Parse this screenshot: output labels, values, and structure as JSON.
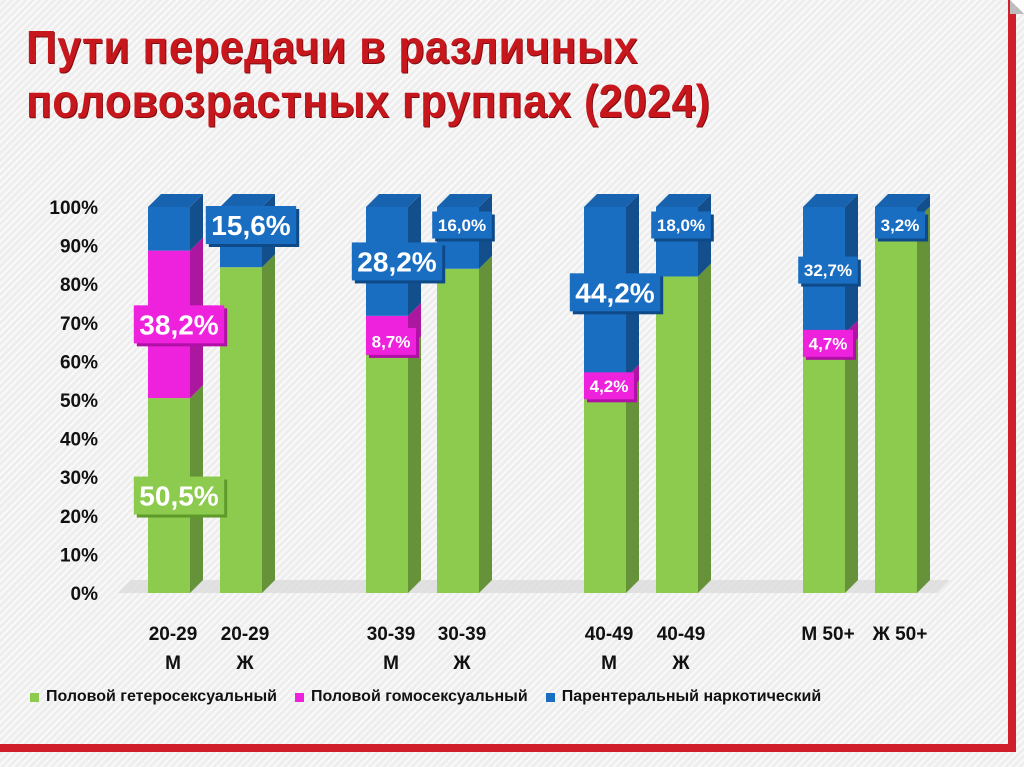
{
  "title": "Пути передачи в различных\nполовозрастных группах (2024)",
  "colors": {
    "green": "#8dcb4f",
    "magenta": "#ee22dd",
    "blue": "#1a6ec2",
    "frame": "#d01f2b"
  },
  "chart_data": {
    "type": "bar",
    "stacked": true,
    "title": "Пути передачи в различных половозрастных группах (2024)",
    "ylim": [
      0,
      100
    ],
    "yticks": [
      "0%",
      "10%",
      "20%",
      "30%",
      "40%",
      "50%",
      "60%",
      "70%",
      "80%",
      "90%",
      "100%"
    ],
    "categories": [
      {
        "line1": "20-29",
        "line2": "М"
      },
      {
        "line1": "20-29",
        "line2": "Ж"
      },
      {
        "line1": "30-39",
        "line2": "М"
      },
      {
        "line1": "30-39",
        "line2": "Ж"
      },
      {
        "line1": "40-49",
        "line2": "М"
      },
      {
        "line1": "40-49",
        "line2": "Ж"
      },
      {
        "line1": "М 50+",
        "line2": ""
      },
      {
        "line1": "Ж 50+",
        "line2": ""
      }
    ],
    "series": [
      {
        "name": "Половой гетеросексуальный",
        "color": "#8dcb4f",
        "values": [
          50.5,
          84.4,
          63.1,
          84.0,
          51.6,
          82.0,
          62.6,
          96.8
        ],
        "labels": [
          "50,5%",
          "",
          "",
          "",
          "",
          "",
          "",
          ""
        ]
      },
      {
        "name": "Половой гомосексуальный",
        "color": "#ee22dd",
        "values": [
          38.2,
          0,
          8.7,
          0,
          4.2,
          0,
          4.7,
          0
        ],
        "labels": [
          "38,2%",
          "",
          "8,7%",
          "",
          "4,2%",
          "",
          "4,7%",
          ""
        ]
      },
      {
        "name": "Парентеральный наркотический",
        "color": "#1a6ec2",
        "values": [
          11.3,
          15.6,
          28.2,
          16.0,
          44.2,
          18.0,
          32.7,
          3.2
        ],
        "labels": [
          "",
          "15,6%",
          "28,2%",
          "16,0%",
          "44,2%",
          "18,0%",
          "32,7%",
          "3,2%"
        ]
      }
    ],
    "legend": "bottom",
    "grid": false
  }
}
